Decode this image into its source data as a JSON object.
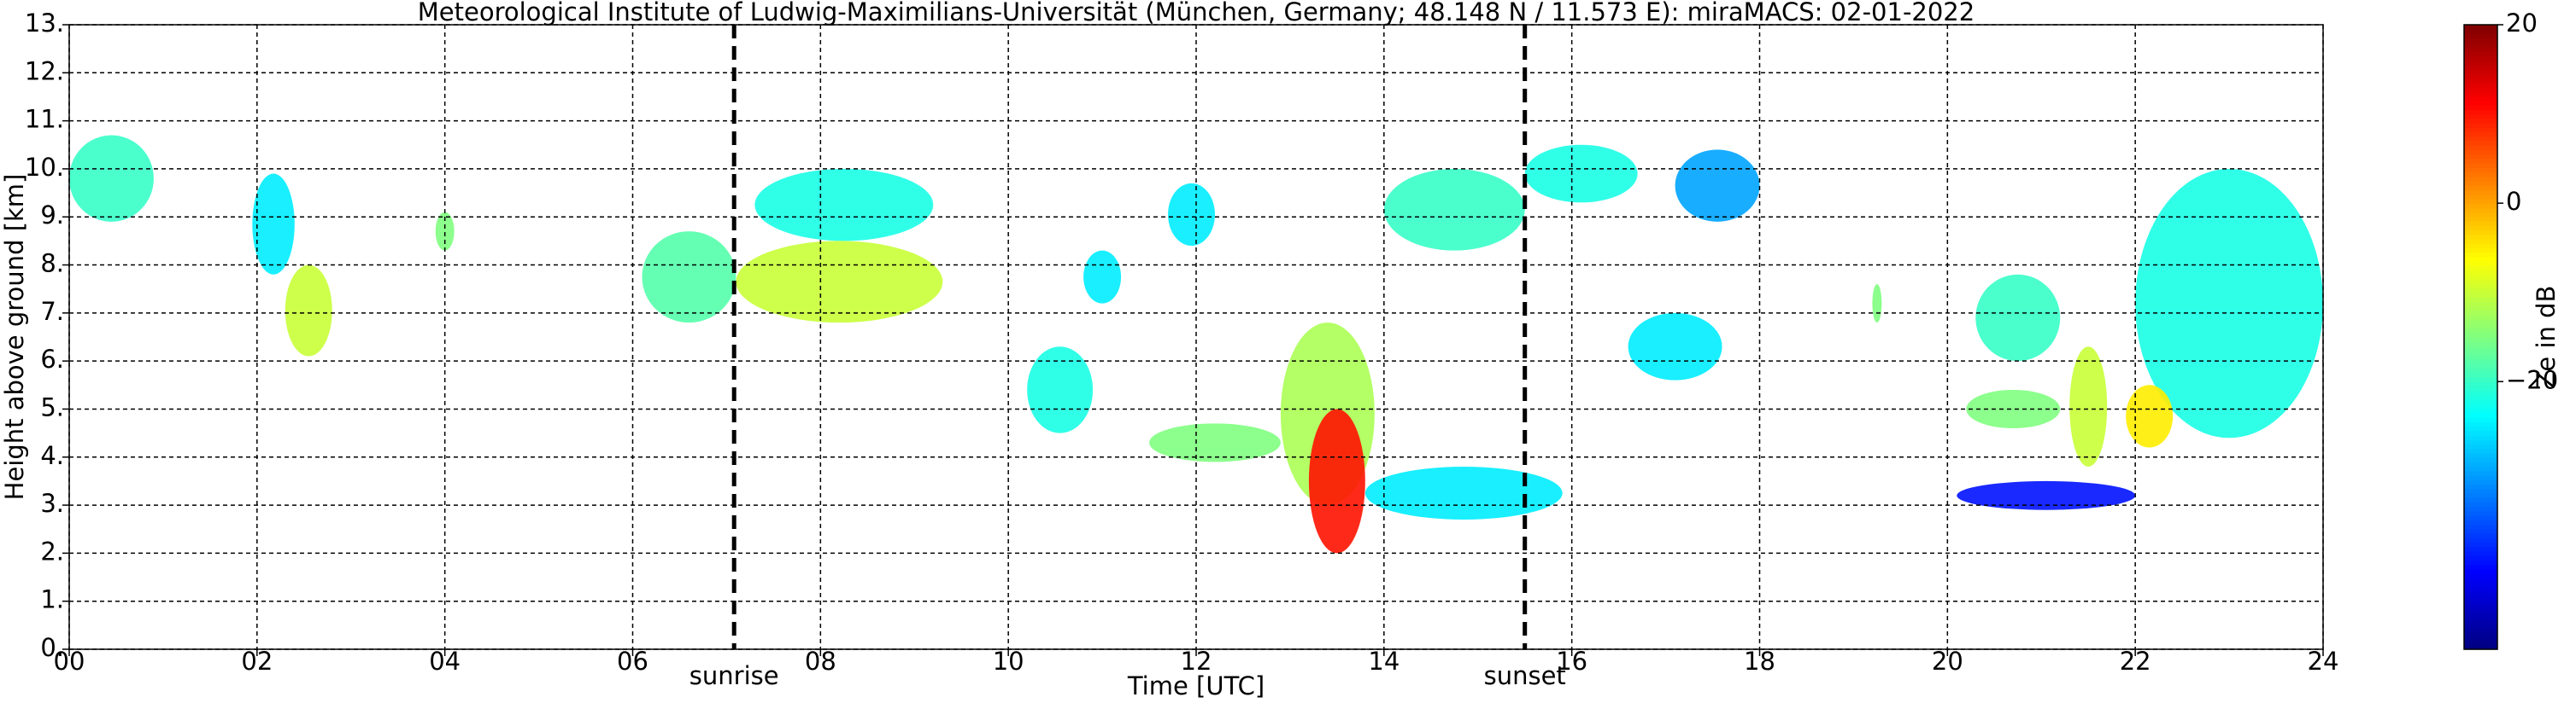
{
  "chart_data": {
    "type": "radar-time-height",
    "title": "Meteorological Institute of Ludwig-Maximilians-Universität (München, Germany; 48.148 N / 11.573 E):    miraMACS: 02-01-2022",
    "x_label": "Time [UTC]",
    "y_label": "Height above ground [km]",
    "colorbar_label": "Ze in dB",
    "xlim": [
      0,
      24
    ],
    "xticks": [
      {
        "value": 0,
        "label": "00"
      },
      {
        "value": 2,
        "label": "02"
      },
      {
        "value": 4,
        "label": "04"
      },
      {
        "value": 6,
        "label": "06"
      },
      {
        "value": 8,
        "label": "08"
      },
      {
        "value": 10,
        "label": "10"
      },
      {
        "value": 12,
        "label": "12"
      },
      {
        "value": 14,
        "label": "14"
      },
      {
        "value": 16,
        "label": "16"
      },
      {
        "value": 18,
        "label": "18"
      },
      {
        "value": 20,
        "label": "20"
      },
      {
        "value": 22,
        "label": "22"
      },
      {
        "value": 24,
        "label": "24"
      }
    ],
    "ylim": [
      0,
      13
    ],
    "yticks": [
      {
        "value": 0,
        "label": "0."
      },
      {
        "value": 1,
        "label": "1."
      },
      {
        "value": 2,
        "label": "2."
      },
      {
        "value": 3,
        "label": "3."
      },
      {
        "value": 4,
        "label": "4."
      },
      {
        "value": 5,
        "label": "5."
      },
      {
        "value": 6,
        "label": "6."
      },
      {
        "value": 7,
        "label": "7."
      },
      {
        "value": 8,
        "label": "8."
      },
      {
        "value": 9,
        "label": "9."
      },
      {
        "value": 10,
        "label": "10."
      },
      {
        "value": 11,
        "label": "11."
      },
      {
        "value": 12,
        "label": "12."
      },
      {
        "value": 13,
        "label": "13."
      }
    ],
    "clim": [
      -50,
      20
    ],
    "cticks": [
      20,
      0,
      {
        "value": -20,
        "label": "−20"
      }
    ],
    "colormap": "jet",
    "grid": true,
    "annotations": [
      {
        "x": 7.08,
        "label": "sunrise"
      },
      {
        "x": 15.5,
        "label": "sunset"
      }
    ],
    "echoes": [
      {
        "t": [
          0.0,
          0.9
        ],
        "h": [
          8.9,
          10.7
        ],
        "ze": -20
      },
      {
        "t": [
          1.95,
          2.4
        ],
        "h": [
          7.8,
          9.9
        ],
        "ze": -25
      },
      {
        "t": [
          2.3,
          2.8
        ],
        "h": [
          6.1,
          8.0
        ],
        "ze": -10
      },
      {
        "t": [
          3.9,
          4.1
        ],
        "h": [
          8.3,
          9.1
        ],
        "ze": -15
      },
      {
        "t": [
          6.1,
          7.1
        ],
        "h": [
          6.8,
          8.7
        ],
        "ze": -18
      },
      {
        "t": [
          7.3,
          9.2
        ],
        "h": [
          8.5,
          10.0
        ],
        "ze": -22
      },
      {
        "t": [
          7.1,
          9.3
        ],
        "h": [
          6.8,
          8.5
        ],
        "ze": -10
      },
      {
        "t": [
          10.2,
          10.9
        ],
        "h": [
          4.5,
          6.3
        ],
        "ze": -22
      },
      {
        "t": [
          10.8,
          11.2
        ],
        "h": [
          7.2,
          8.3
        ],
        "ze": -25
      },
      {
        "t": [
          11.7,
          12.2
        ],
        "h": [
          8.4,
          9.7
        ],
        "ze": -25
      },
      {
        "t": [
          11.5,
          12.9
        ],
        "h": [
          3.9,
          4.7
        ],
        "ze": -15
      },
      {
        "t": [
          12.9,
          13.9
        ],
        "h": [
          3.0,
          6.8
        ],
        "ze": -12
      },
      {
        "t": [
          13.2,
          13.8
        ],
        "h": [
          2.0,
          5.0
        ],
        "ze": 10
      },
      {
        "t": [
          13.8,
          15.9
        ],
        "h": [
          2.7,
          3.8
        ],
        "ze": -25
      },
      {
        "t": [
          14.0,
          15.5
        ],
        "h": [
          8.3,
          10.0
        ],
        "ze": -20
      },
      {
        "t": [
          15.5,
          16.7
        ],
        "h": [
          9.3,
          10.5
        ],
        "ze": -22
      },
      {
        "t": [
          16.6,
          17.6
        ],
        "h": [
          5.6,
          7.0
        ],
        "ze": -25
      },
      {
        "t": [
          17.1,
          18.0
        ],
        "h": [
          8.9,
          10.4
        ],
        "ze": -30
      },
      {
        "t": [
          19.2,
          19.3
        ],
        "h": [
          6.8,
          7.6
        ],
        "ze": -15
      },
      {
        "t": [
          20.3,
          21.2
        ],
        "h": [
          6.0,
          7.8
        ],
        "ze": -20
      },
      {
        "t": [
          20.2,
          21.2
        ],
        "h": [
          4.6,
          5.4
        ],
        "ze": -15
      },
      {
        "t": [
          21.3,
          21.7
        ],
        "h": [
          3.8,
          6.3
        ],
        "ze": -10
      },
      {
        "t": [
          20.1,
          22.0
        ],
        "h": [
          2.9,
          3.5
        ],
        "ze": -40
      },
      {
        "t": [
          22.0,
          24.0
        ],
        "h": [
          4.4,
          10.0
        ],
        "ze": -22
      },
      {
        "t": [
          21.9,
          22.4
        ],
        "h": [
          4.2,
          5.5
        ],
        "ze": -5
      }
    ]
  }
}
